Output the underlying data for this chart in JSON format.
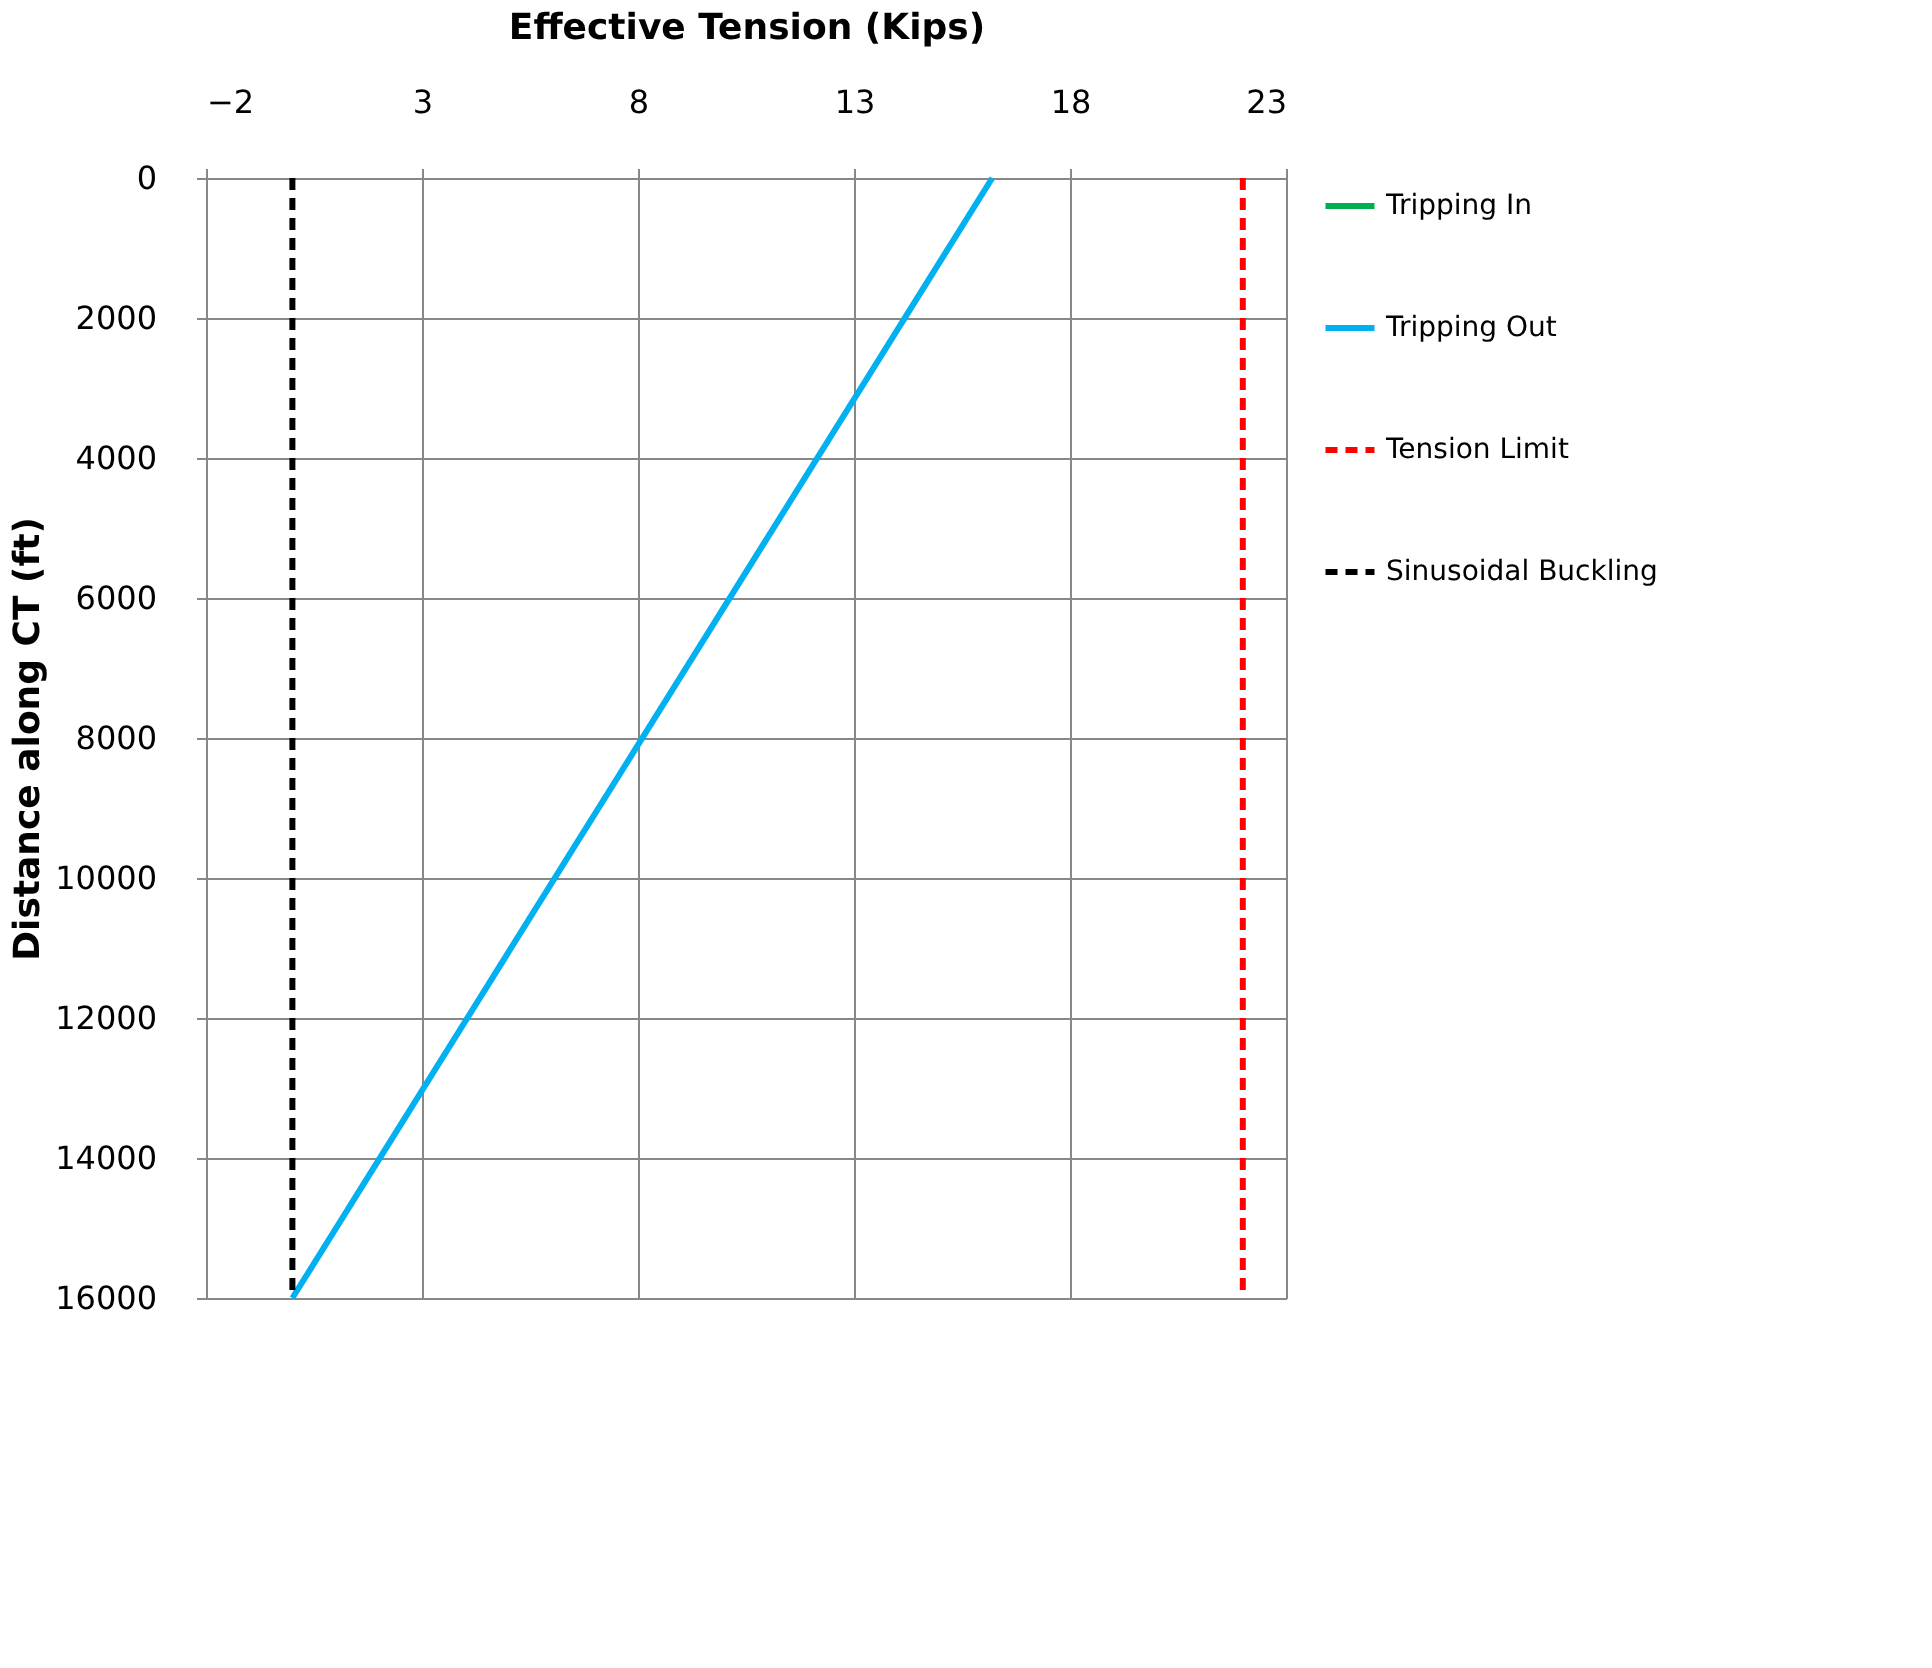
{
  "chart_data": {
    "type": "line",
    "xlabel": "Effective Tension (Kips)",
    "ylabel": "Distance  along CT (ft)",
    "xlim": [
      -2,
      23
    ],
    "xticks": [
      -2,
      3,
      8,
      13,
      18,
      23
    ],
    "ylim": [
      16000,
      0
    ],
    "yticks": [
      0,
      2000,
      4000,
      6000,
      8000,
      10000,
      12000,
      14000,
      16000
    ],
    "grid": true,
    "legend": "right",
    "series": [
      {
        "name": "Tripping In",
        "color": "#00b050",
        "line_style": "solid",
        "x": [
          null,
          null
        ],
        "values": [
          null,
          null
        ]
      },
      {
        "name": "Tripping Out",
        "color": "#00b0f0",
        "line_style": "solid",
        "x": [
          16.2,
          0
        ],
        "values": [
          0,
          16000
        ]
      },
      {
        "name": "Tension Limit",
        "color": "#ff0000",
        "line_style": "dashed",
        "x": [
          22,
          22
        ],
        "values": [
          0,
          16000
        ]
      },
      {
        "name": "Sinusoidal Buckling",
        "color": "#000000",
        "line_style": "dashed",
        "x": [
          0,
          0
        ],
        "values": [
          0,
          16000
        ]
      }
    ]
  }
}
